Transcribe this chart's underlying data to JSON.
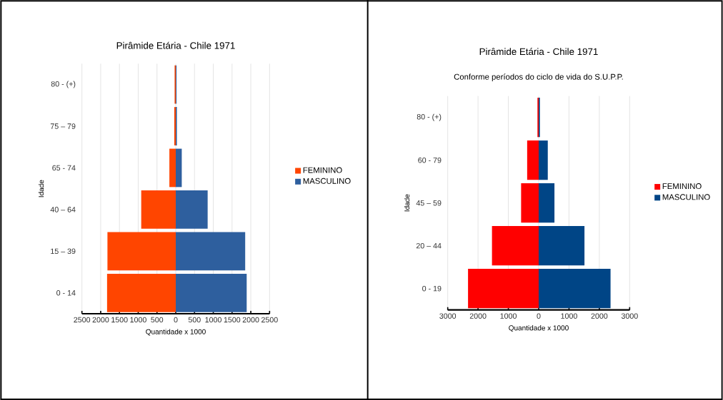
{
  "chart_data": [
    {
      "type": "bar",
      "orientation": "horizontal",
      "stacked": true,
      "title": "Pirâmide Etária - Chile 1971",
      "xlabel": "Quantidade x 1000",
      "ylabel": "Idade",
      "categories": [
        "80 - (+)",
        "75 – 79",
        "65 - 74",
        "40 – 64",
        "15 – 39",
        "0 - 14"
      ],
      "series": [
        {
          "name": "FEMININO",
          "color": "#ff4500",
          "values": [
            -30,
            -40,
            -170,
            -920,
            -1820,
            -1830
          ]
        },
        {
          "name": "MASCULINO",
          "color": "#2e5f9e",
          "values": [
            20,
            30,
            160,
            850,
            1850,
            1890
          ]
        }
      ],
      "xlim": [
        -2500,
        2500
      ],
      "xticks": [
        {
          "value": -2500,
          "label": "2500"
        },
        {
          "value": -2000,
          "label": "2000"
        },
        {
          "value": -1500,
          "label": "1500"
        },
        {
          "value": -1000,
          "label": "1000"
        },
        {
          "value": -500,
          "label": "500"
        },
        0,
        500,
        1000,
        1500,
        2000,
        2500
      ],
      "grid": "x",
      "legend": "right"
    },
    {
      "type": "bar",
      "orientation": "horizontal",
      "stacked": true,
      "title": "Pirâmide Etária - Chile 1971",
      "subtitle": "Conforme períodos do ciclo de vida do S.U.P.P.",
      "xlabel": "Quantidade x 1000",
      "ylabel": "Idade",
      "categories": [
        "80 - (+)",
        "60 - 79",
        "45 – 59",
        "20 – 44",
        "0 - 19"
      ],
      "series": [
        {
          "name": "FEMININO",
          "color": "#ff0000",
          "values": [
            -40,
            -380,
            -580,
            -1540,
            -2330
          ]
        },
        {
          "name": "MASCULINO",
          "color": "#004586",
          "values": [
            40,
            300,
            520,
            1510,
            2370
          ]
        }
      ],
      "xlim": [
        -3000,
        3000
      ],
      "xticks": [
        {
          "value": -3000,
          "label": "3000"
        },
        {
          "value": -2000,
          "label": "2000"
        },
        {
          "value": -1000,
          "label": "1000"
        },
        0,
        1000,
        2000,
        3000
      ],
      "grid": "x",
      "legend": "right"
    }
  ]
}
